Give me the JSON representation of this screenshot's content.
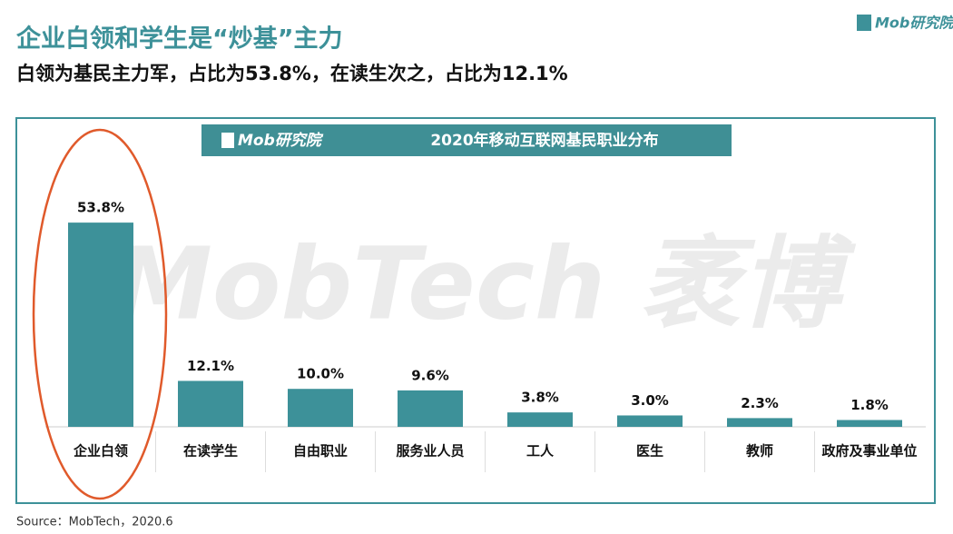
{
  "header": {
    "title": "企业白领和学生是“炒基”主力",
    "subtitle": "白领为基民主力军，占比为53.8%，在读生次之，占比为12.1%",
    "logo": "Mob研究院"
  },
  "chart_data": {
    "type": "bar",
    "title": "2020年移动互联网基民职业分布",
    "banner_logo": "Mob研究院",
    "watermark": "MobTech 袤博",
    "categories": [
      "企业白领",
      "在读学生",
      "自由职业",
      "服务业人员",
      "工人",
      "医生",
      "教师",
      "政府及事业单位"
    ],
    "values": [
      53.8,
      12.1,
      10.0,
      9.6,
      3.8,
      3.0,
      2.3,
      1.8
    ],
    "value_labels": [
      "53.8%",
      "12.1%",
      "10.0%",
      "9.6%",
      "3.8%",
      "3.0%",
      "2.3%",
      "1.8%"
    ],
    "color": "#3d9199"
  },
  "footer": {
    "source": "Source：MobTech，2020.6"
  }
}
